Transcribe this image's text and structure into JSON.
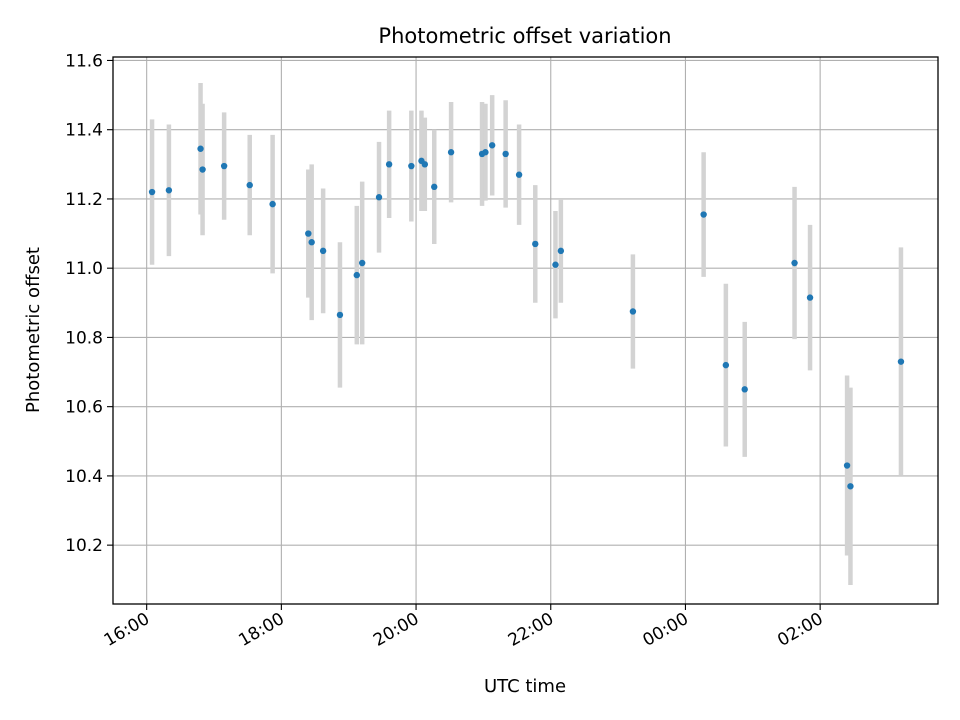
{
  "chart_data": {
    "type": "scatter",
    "title": "Photometric offset variation",
    "xlabel": "UTC time",
    "ylabel": "Photometric offset",
    "xlim_hours": [
      15.5,
      27.75
    ],
    "ylim": [
      10.03,
      11.61
    ],
    "grid": true,
    "x_ticks": [
      {
        "hour": 16,
        "label": "16:00"
      },
      {
        "hour": 18,
        "label": "18:00"
      },
      {
        "hour": 20,
        "label": "20:00"
      },
      {
        "hour": 22,
        "label": "22:00"
      },
      {
        "hour": 24,
        "label": "00:00"
      },
      {
        "hour": 26,
        "label": "02:00"
      }
    ],
    "y_ticks": [
      {
        "value": 10.2,
        "label": "10.2"
      },
      {
        "value": 10.4,
        "label": "10.4"
      },
      {
        "value": 10.6,
        "label": "10.6"
      },
      {
        "value": 10.8,
        "label": "10.8"
      },
      {
        "value": 11.0,
        "label": "11.0"
      },
      {
        "value": 11.2,
        "label": "11.2"
      },
      {
        "value": 11.4,
        "label": "11.4"
      },
      {
        "value": 11.6,
        "label": "11.6"
      }
    ],
    "colors": {
      "point": "#1f77b4",
      "errorbar": "#d3d3d3",
      "grid": "#b0b0b0"
    },
    "points_note": "x in decimal UTC hours (values above 24 are the next day), y = offset, err = half-length of error bar",
    "points": [
      {
        "x": 16.08,
        "y": 11.22,
        "err": 0.21
      },
      {
        "x": 16.33,
        "y": 11.225,
        "err": 0.19
      },
      {
        "x": 16.8,
        "y": 11.345,
        "err": 0.19
      },
      {
        "x": 16.83,
        "y": 11.285,
        "err": 0.19
      },
      {
        "x": 17.15,
        "y": 11.295,
        "err": 0.155
      },
      {
        "x": 17.53,
        "y": 11.24,
        "err": 0.145
      },
      {
        "x": 17.87,
        "y": 11.185,
        "err": 0.2
      },
      {
        "x": 18.4,
        "y": 11.1,
        "err": 0.185
      },
      {
        "x": 18.45,
        "y": 11.075,
        "err": 0.225
      },
      {
        "x": 18.62,
        "y": 11.05,
        "err": 0.18
      },
      {
        "x": 18.87,
        "y": 10.865,
        "err": 0.21
      },
      {
        "x": 19.12,
        "y": 10.98,
        "err": 0.2
      },
      {
        "x": 19.2,
        "y": 11.015,
        "err": 0.235
      },
      {
        "x": 19.45,
        "y": 11.205,
        "err": 0.16
      },
      {
        "x": 19.6,
        "y": 11.3,
        "err": 0.155
      },
      {
        "x": 19.93,
        "y": 11.295,
        "err": 0.16
      },
      {
        "x": 20.08,
        "y": 11.31,
        "err": 0.145
      },
      {
        "x": 20.13,
        "y": 11.3,
        "err": 0.135
      },
      {
        "x": 20.27,
        "y": 11.235,
        "err": 0.165
      },
      {
        "x": 20.52,
        "y": 11.335,
        "err": 0.145
      },
      {
        "x": 20.98,
        "y": 11.33,
        "err": 0.15
      },
      {
        "x": 21.03,
        "y": 11.335,
        "err": 0.14
      },
      {
        "x": 21.13,
        "y": 11.355,
        "err": 0.145
      },
      {
        "x": 21.33,
        "y": 11.33,
        "err": 0.155
      },
      {
        "x": 21.53,
        "y": 11.27,
        "err": 0.145
      },
      {
        "x": 21.77,
        "y": 11.07,
        "err": 0.17
      },
      {
        "x": 22.07,
        "y": 11.01,
        "err": 0.155
      },
      {
        "x": 22.15,
        "y": 11.05,
        "err": 0.15
      },
      {
        "x": 23.22,
        "y": 10.875,
        "err": 0.165
      },
      {
        "x": 24.27,
        "y": 11.155,
        "err": 0.18
      },
      {
        "x": 24.6,
        "y": 10.72,
        "err": 0.235
      },
      {
        "x": 24.88,
        "y": 10.65,
        "err": 0.195
      },
      {
        "x": 25.62,
        "y": 11.015,
        "err": 0.22
      },
      {
        "x": 25.85,
        "y": 10.915,
        "err": 0.21
      },
      {
        "x": 26.4,
        "y": 10.43,
        "err": 0.26
      },
      {
        "x": 26.45,
        "y": 10.37,
        "err": 0.285
      },
      {
        "x": 27.2,
        "y": 10.73,
        "err": 0.33
      }
    ]
  }
}
